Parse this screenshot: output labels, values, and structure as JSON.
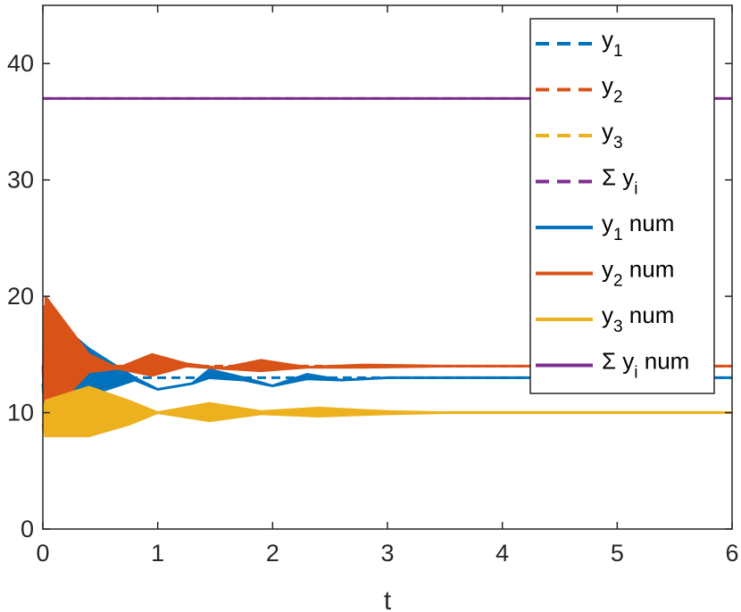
{
  "chart_data": {
    "type": "line",
    "xlabel": "t",
    "ylabel": "",
    "xlim": [
      0,
      6
    ],
    "ylim": [
      0,
      45
    ],
    "xticks": [
      "0",
      "1",
      "2",
      "3",
      "4",
      "5",
      "6"
    ],
    "yticks": [
      "0",
      "10",
      "20",
      "30",
      "40"
    ],
    "xtick_values": [
      0,
      1,
      2,
      3,
      4,
      5,
      6
    ],
    "ytick_values": [
      0,
      10,
      20,
      30,
      40
    ],
    "grid": false,
    "legend_position": "top-right",
    "legend": [
      {
        "name": "y",
        "sub": "1",
        "suffix": "",
        "style": "dashed",
        "color": "#0072BD"
      },
      {
        "name": "y",
        "sub": "2",
        "suffix": "",
        "style": "dashed",
        "color": "#D95319"
      },
      {
        "name": "y",
        "sub": "3",
        "suffix": "",
        "style": "dashed",
        "color": "#EDB120"
      },
      {
        "name": "Σ y",
        "sub": "i",
        "suffix": "",
        "style": "dashed",
        "color": "#7E2F8E"
      },
      {
        "name": "y",
        "sub": "1",
        "suffix": " num",
        "style": "solid",
        "color": "#0072BD"
      },
      {
        "name": "y",
        "sub": "2",
        "suffix": " num",
        "style": "solid",
        "color": "#D95319"
      },
      {
        "name": "y",
        "sub": "3",
        "suffix": " num",
        "style": "solid",
        "color": "#EDB120"
      },
      {
        "name": "Σ y",
        "sub": "i",
        "suffix": " num",
        "style": "solid",
        "color": "#7E2F8E"
      }
    ],
    "series": [
      {
        "key": "y1",
        "color": "#0072BD",
        "equilibrium": 13,
        "envelope": [
          [
            0,
            12.5
          ],
          [
            0.02,
            18
          ],
          [
            0.1,
            18
          ],
          [
            0.4,
            15.5
          ],
          [
            0.8,
            13
          ],
          [
            1.0,
            12
          ],
          [
            1.3,
            12.5
          ],
          [
            1.45,
            13.7
          ],
          [
            1.75,
            13
          ],
          [
            2.0,
            12.3
          ],
          [
            2.3,
            13.3
          ],
          [
            2.6,
            12.8
          ],
          [
            3.0,
            13
          ],
          [
            6,
            13
          ]
        ],
        "lower_envelope": [
          [
            0,
            12.5
          ],
          [
            0.02,
            9
          ],
          [
            0.1,
            8.5
          ],
          [
            0.4,
            11.5
          ],
          [
            0.8,
            12.8
          ],
          [
            1.0,
            12
          ],
          [
            1.3,
            12.5
          ],
          [
            1.45,
            13
          ],
          [
            1.75,
            12.8
          ],
          [
            2.0,
            12.3
          ],
          [
            2.3,
            12.9
          ],
          [
            2.6,
            12.8
          ],
          [
            3.0,
            13
          ],
          [
            6,
            13
          ]
        ]
      },
      {
        "key": "y2",
        "color": "#D95319",
        "equilibrium": 14,
        "envelope": [
          [
            0,
            14
          ],
          [
            0.02,
            20
          ],
          [
            0.4,
            15
          ],
          [
            0.65,
            13.8
          ],
          [
            0.95,
            15
          ],
          [
            1.25,
            14.2
          ],
          [
            1.55,
            13.8
          ],
          [
            1.9,
            14.5
          ],
          [
            2.3,
            13.9
          ],
          [
            2.8,
            14.1
          ],
          [
            3.5,
            14
          ],
          [
            6,
            14
          ]
        ],
        "lower_envelope": [
          [
            0,
            14
          ],
          [
            0.02,
            9.5
          ],
          [
            0.4,
            13.5
          ],
          [
            0.65,
            13.8
          ],
          [
            0.95,
            13.2
          ],
          [
            1.25,
            14
          ],
          [
            1.55,
            13.8
          ],
          [
            1.9,
            13.6
          ],
          [
            2.3,
            13.9
          ],
          [
            2.8,
            13.9
          ],
          [
            3.5,
            14
          ],
          [
            6,
            14
          ]
        ]
      },
      {
        "key": "y3",
        "color": "#EDB120",
        "equilibrium": 10,
        "envelope": [
          [
            0,
            9
          ],
          [
            0.02,
            11
          ],
          [
            0.4,
            12.2
          ],
          [
            0.75,
            11
          ],
          [
            1.0,
            10
          ],
          [
            1.45,
            10.8
          ],
          [
            1.9,
            10.1
          ],
          [
            2.4,
            10.4
          ],
          [
            3.0,
            10.1
          ],
          [
            3.5,
            10
          ],
          [
            6,
            10
          ]
        ],
        "lower_envelope": [
          [
            0,
            9
          ],
          [
            0.02,
            8
          ],
          [
            0.4,
            8
          ],
          [
            0.75,
            9
          ],
          [
            1.0,
            10
          ],
          [
            1.45,
            9.3
          ],
          [
            1.9,
            9.9
          ],
          [
            2.4,
            9.7
          ],
          [
            3.0,
            9.9
          ],
          [
            3.5,
            10
          ],
          [
            6,
            10
          ]
        ]
      },
      {
        "key": "sum",
        "color": "#7E2F8E",
        "equilibrium": 37,
        "envelope": [
          [
            0,
            37
          ],
          [
            6,
            37
          ]
        ],
        "lower_envelope": [
          [
            0,
            37
          ],
          [
            6,
            37
          ]
        ]
      }
    ]
  }
}
